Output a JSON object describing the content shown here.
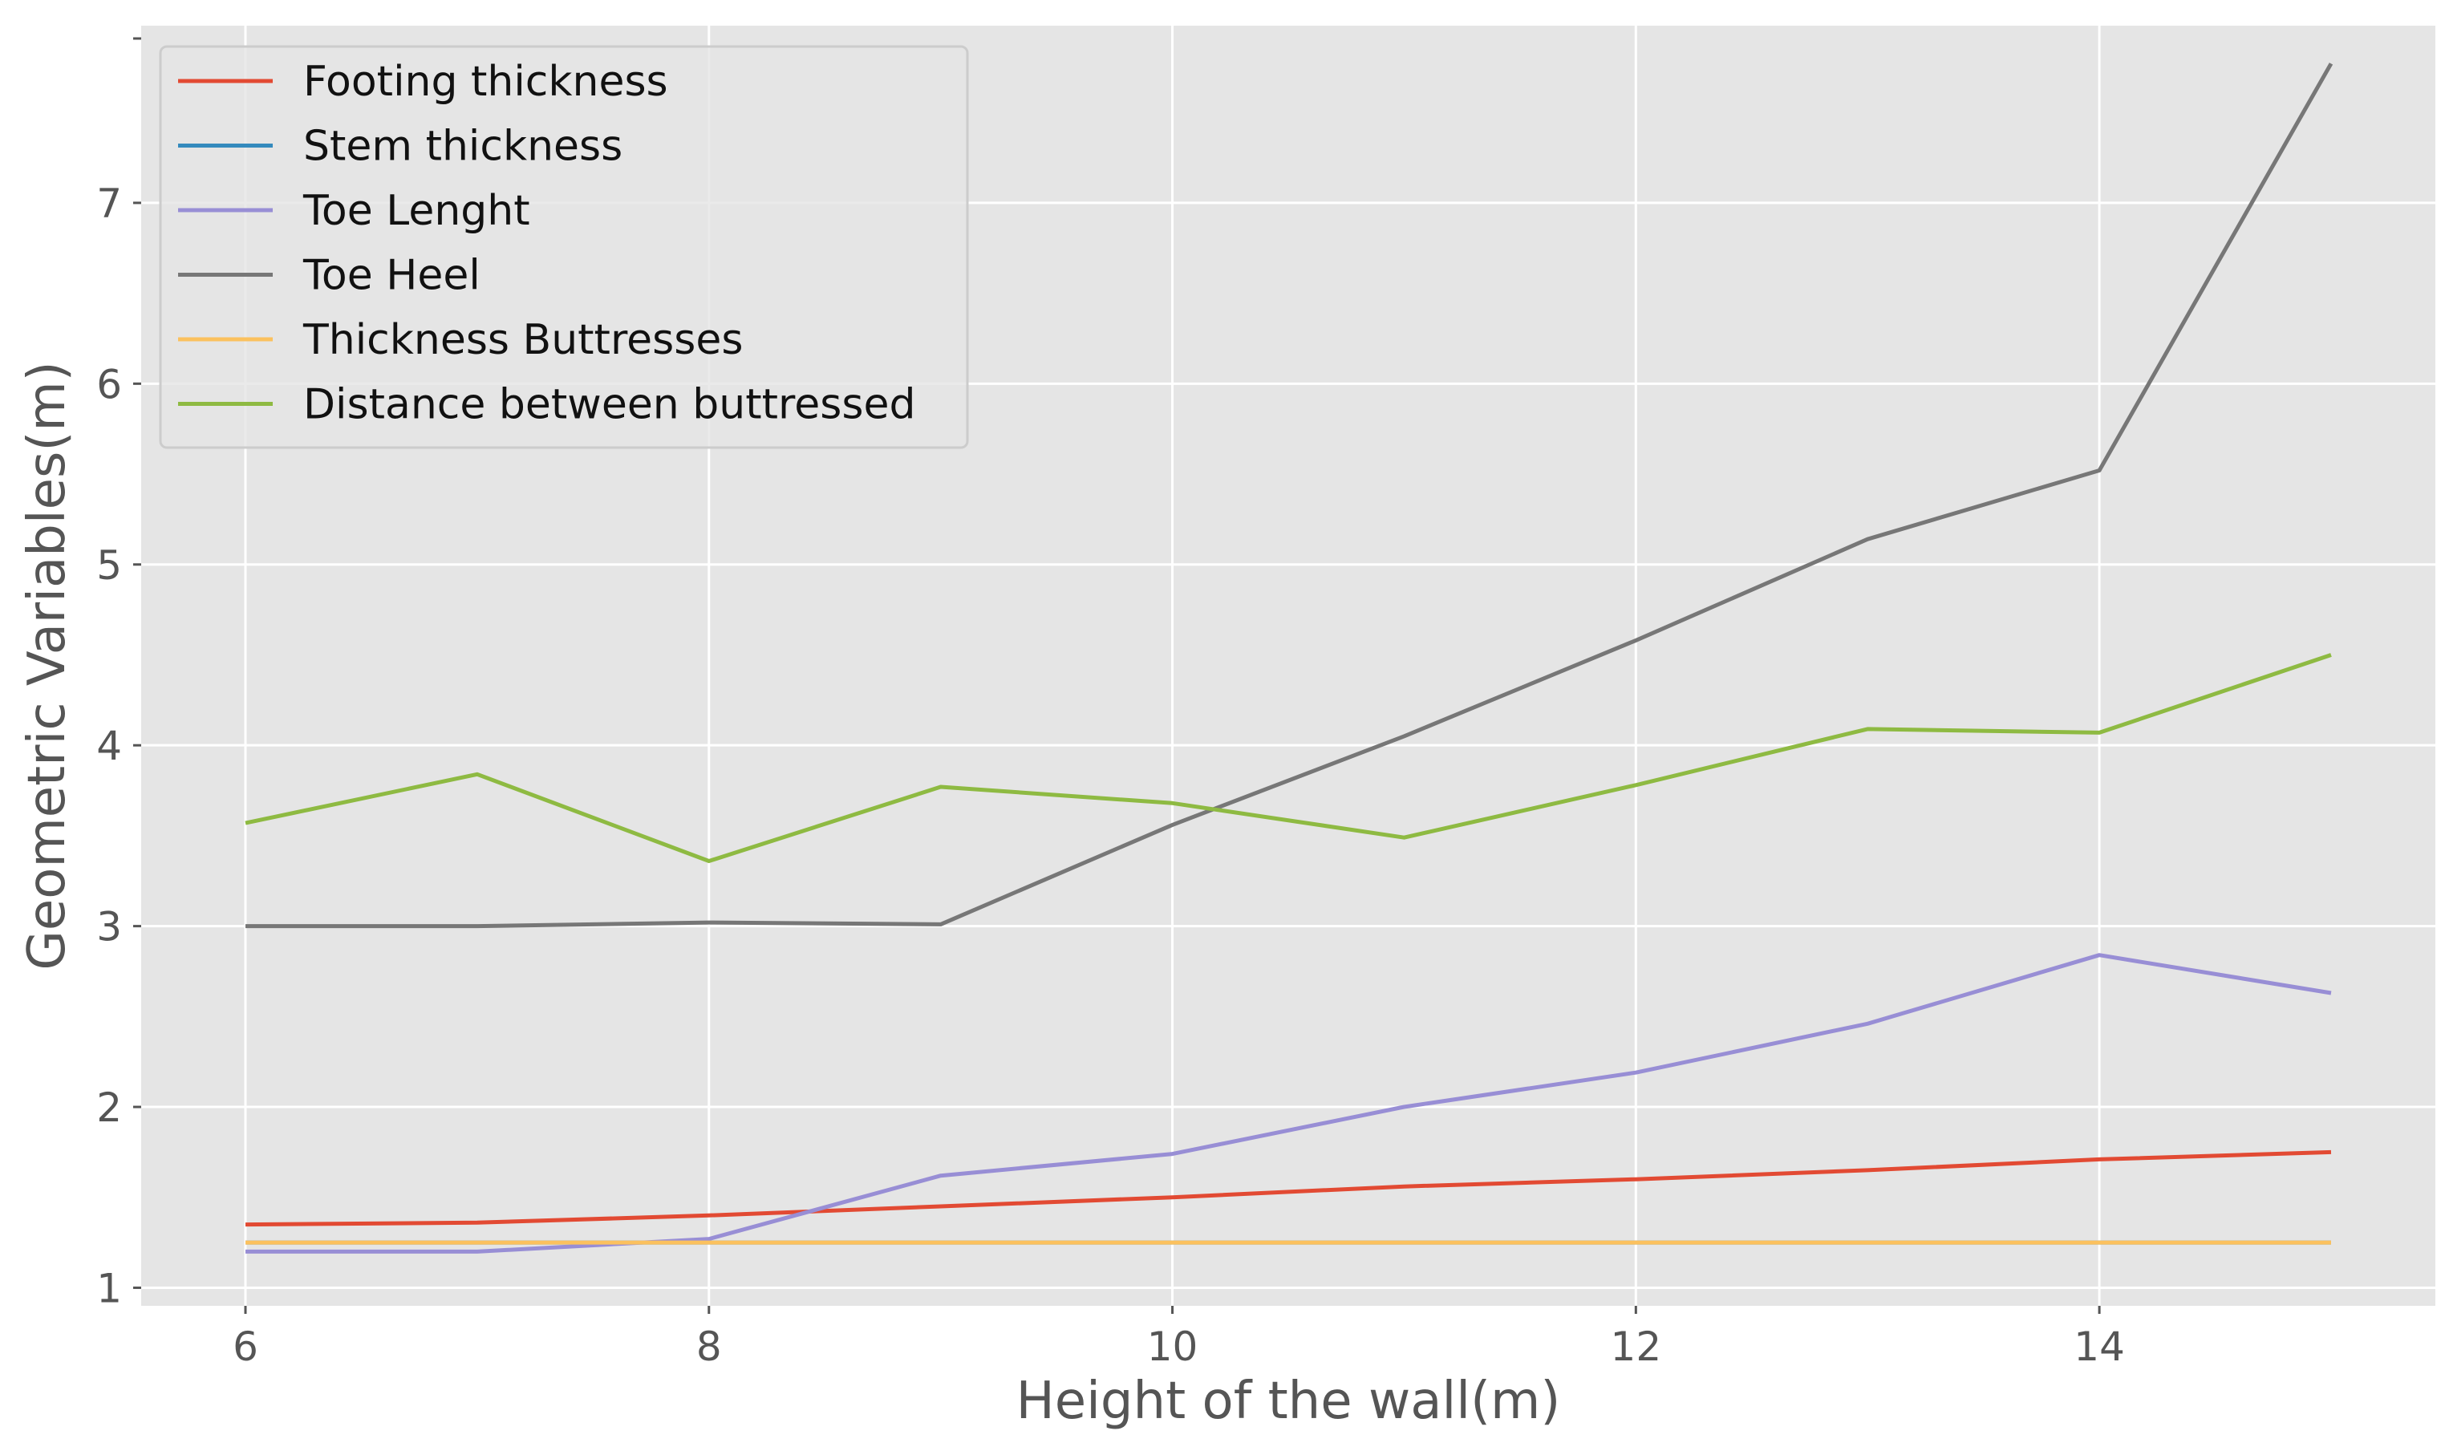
{
  "chart_data": {
    "type": "line",
    "title": "",
    "xlabel": "Height of the wall(m)",
    "ylabel": "Geometric Variables(m)",
    "xlim": [
      5.55,
      15.45
    ],
    "ylim": [
      0.9,
      7.98
    ],
    "x": [
      6,
      7,
      8,
      9,
      10,
      11,
      12,
      13,
      14,
      15
    ],
    "xticks": [
      6,
      8,
      10,
      12,
      14
    ],
    "xtick_labels": [
      "6",
      "8",
      "10",
      "12",
      "14"
    ],
    "yticks": [
      1,
      2,
      3,
      4,
      5,
      6,
      7
    ],
    "ytick_labels": [
      "1",
      "2",
      "3",
      "4",
      "5",
      "6",
      "7"
    ],
    "grid": true,
    "legend_position": "top-left",
    "series": [
      {
        "name": "Footing thickness",
        "color": "#E24A33",
        "values": [
          1.35,
          1.36,
          1.4,
          1.45,
          1.5,
          1.56,
          1.6,
          1.65,
          1.71,
          1.75
        ]
      },
      {
        "name": "Stem thickness",
        "color": "#348ABD",
        "values": [
          1.25,
          1.25,
          1.25,
          1.25,
          1.25,
          1.25,
          1.25,
          1.25,
          1.25,
          1.25
        ]
      },
      {
        "name": "Toe Lenght",
        "color": "#988ED5",
        "values": [
          1.2,
          1.2,
          1.27,
          1.62,
          1.74,
          2.0,
          2.19,
          2.46,
          2.84,
          2.63
        ]
      },
      {
        "name": "Toe Heel",
        "color": "#777777",
        "values": [
          3.0,
          3.0,
          3.02,
          3.01,
          3.56,
          4.05,
          4.58,
          5.14,
          5.52,
          7.77
        ]
      },
      {
        "name": "Thickness Buttresses",
        "color": "#FBC15E",
        "values": [
          1.25,
          1.25,
          1.25,
          1.25,
          1.25,
          1.25,
          1.25,
          1.25,
          1.25,
          1.25
        ]
      },
      {
        "name": "Distance between buttressed",
        "color": "#8EBA42",
        "values": [
          3.57,
          3.84,
          3.36,
          3.77,
          3.68,
          3.49,
          3.78,
          4.09,
          4.07,
          4.5
        ]
      }
    ]
  }
}
